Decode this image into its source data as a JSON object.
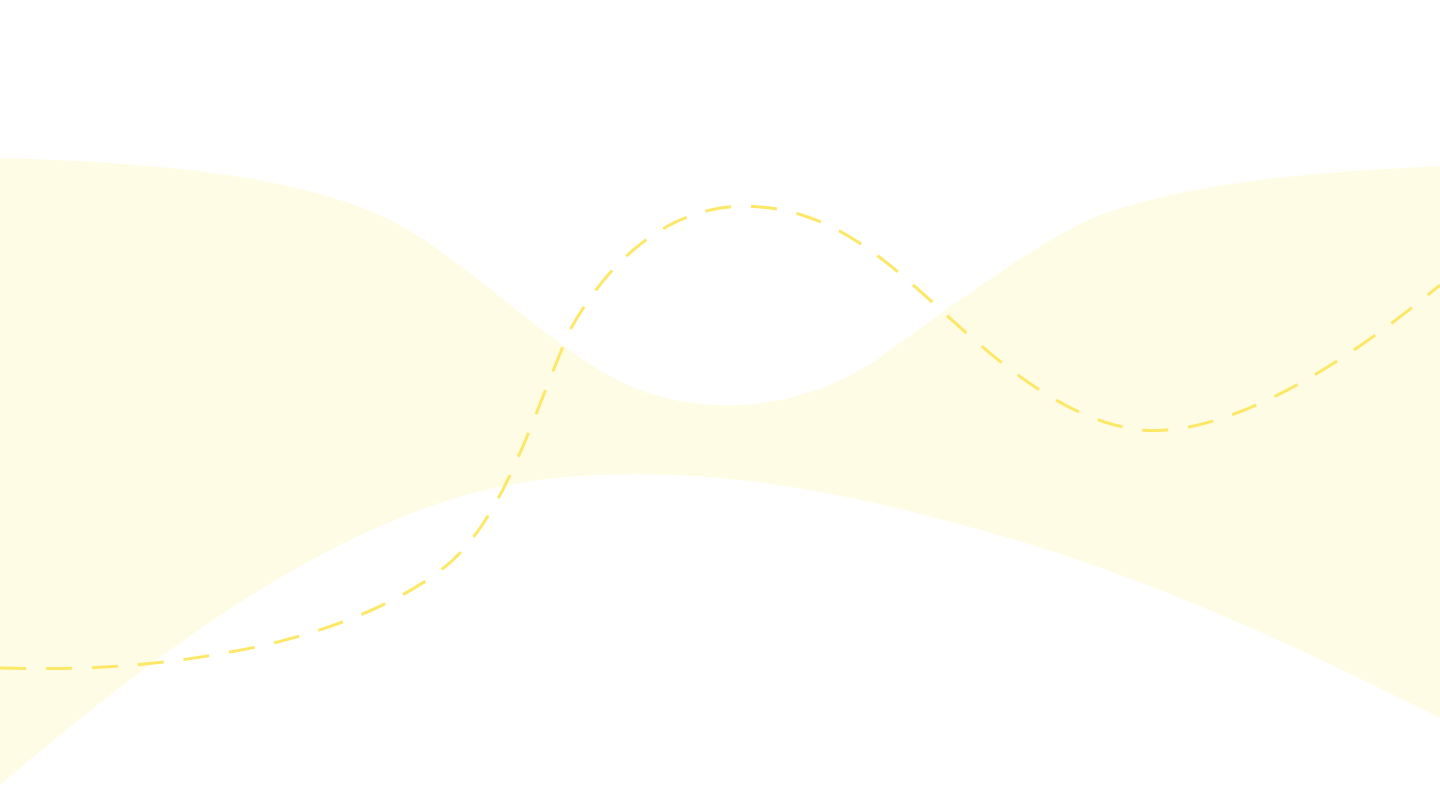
{
  "background": {
    "page_color": "#ffffff",
    "ribbon_color": "#fffce6",
    "dash_line_color": "#fde766"
  },
  "decoration": {
    "ribbon_icon": "wave-ribbon-shape",
    "line_icon": "dashed-wave-line"
  }
}
